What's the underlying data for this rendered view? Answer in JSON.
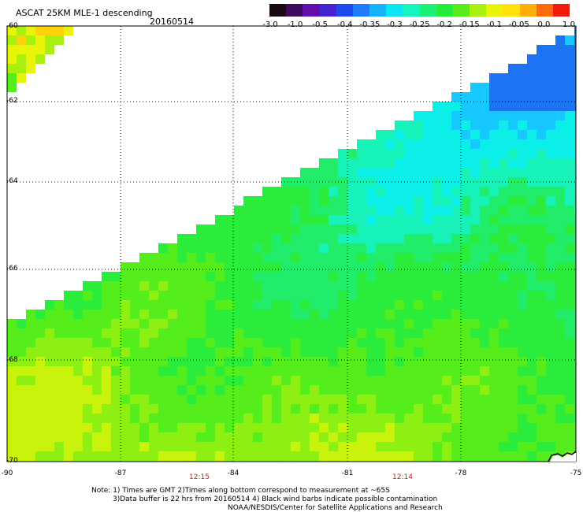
{
  "header": {
    "title": "ASCAT 25KM MLE-1 descending",
    "date": "20160514"
  },
  "colorbar": {
    "tick_labels": [
      "-3.0",
      "-1.0",
      "-0.5",
      "-0.4",
      "-0.35",
      "-0.3",
      "-0.25",
      "-0.2",
      "-0.15",
      "-0.1",
      "-0.05",
      "0.0",
      "1.0"
    ],
    "colors": [
      "#1a0a14",
      "#3d0a5c",
      "#5f10a8",
      "#4326d2",
      "#1f49f0",
      "#1f7bff",
      "#16b3ff",
      "#0ce5f3",
      "#16f5bb",
      "#1ef076",
      "#22ec3c",
      "#55ee1c",
      "#a8f010",
      "#e8f50a",
      "#ffe20a",
      "#ffae0a",
      "#ff6a0a",
      "#f21a0a"
    ]
  },
  "map": {
    "lat_range": [
      -70,
      -60
    ],
    "lon_range": [
      -90,
      -75
    ],
    "lat_labels": [
      "-60",
      "-62",
      "-64",
      "-66",
      "-68",
      "-70"
    ],
    "lon_labels": [
      "-90",
      "-87",
      "-84",
      "-81",
      "-78",
      "-75"
    ],
    "time_labels": [
      "12:15",
      "12:14"
    ],
    "swath_edge": "diagonal from upper-right to lower-left"
  },
  "notes": {
    "line1": "Note: 1) Times are GMT 2)Times along bottom correspond to measurement at ~65S",
    "line2": "3)Data buffer is 22 hrs from 20160514 4) Black wind barbs indicate possible contamination",
    "line3": "NOAA/NESDIS/Center for Satellite Applications and Research"
  }
}
